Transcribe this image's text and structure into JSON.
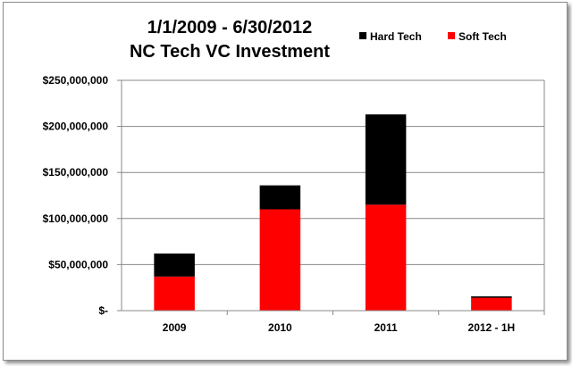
{
  "chart_data": {
    "type": "bar",
    "stacked": true,
    "title": [
      "1/1/2009 - 6/30/2012",
      "NC Tech VC Investment"
    ],
    "categories": [
      "2009",
      "2010",
      "2011",
      "2012 - 1H"
    ],
    "series": [
      {
        "name": "Soft Tech",
        "color": "#ff0000",
        "values": [
          37000000,
          110000000,
          115000000,
          14000000
        ]
      },
      {
        "name": "Hard Tech",
        "color": "#000000",
        "values": [
          25000000,
          26000000,
          98000000,
          1500000
        ]
      }
    ],
    "ylim": [
      0,
      250000000
    ],
    "yticks": [
      0,
      50000000,
      100000000,
      150000000,
      200000000,
      250000000
    ],
    "ytick_labels": [
      "$-",
      "$50,000,000",
      "$100,000,000",
      "$150,000,000",
      "$200,000,000",
      "$250,000,000"
    ],
    "legend_position": "top-right",
    "grid": true
  }
}
